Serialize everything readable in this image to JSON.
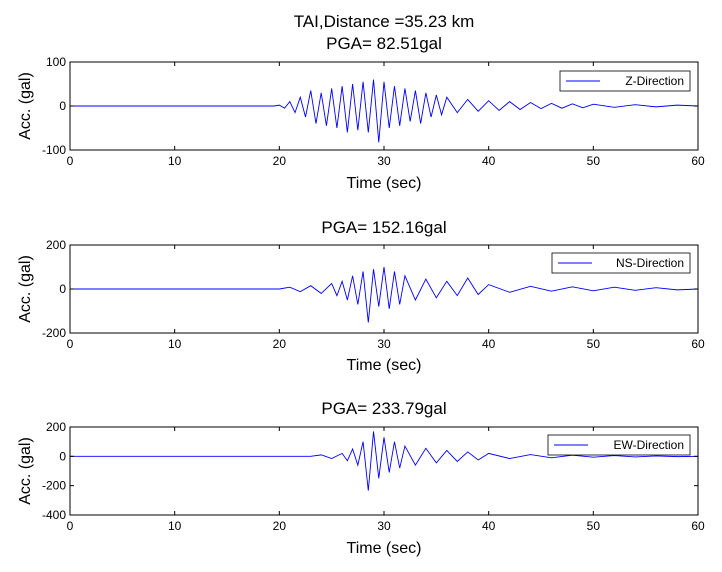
{
  "chart_data": [
    {
      "type": "line",
      "title_lines": [
        "TAI,Distance =35.23 km",
        "PGA= 82.51gal"
      ],
      "xlabel": "Time (sec)",
      "ylabel": "Acc. (gal)",
      "xlim": [
        0,
        60
      ],
      "ylim": [
        -100,
        100
      ],
      "xticks": [
        0,
        10,
        20,
        30,
        40,
        50,
        60
      ],
      "yticks": [
        -100,
        0,
        100
      ],
      "grid": false,
      "legend_position": "top-right",
      "series": [
        {
          "name": "Z-Direction",
          "color": "#0000ff",
          "pga": 82.51,
          "x": [
            0,
            19.5,
            20.0,
            20.5,
            21.0,
            21.5,
            22.0,
            22.5,
            23.0,
            23.5,
            24.0,
            24.5,
            25.0,
            25.5,
            26.0,
            26.5,
            27.0,
            27.5,
            28.0,
            28.5,
            29.0,
            29.5,
            30.0,
            30.5,
            31.0,
            31.5,
            32.0,
            32.5,
            33.0,
            33.5,
            34.0,
            34.5,
            35.0,
            35.5,
            36.0,
            37.0,
            38.0,
            39.0,
            40.0,
            41.0,
            42.0,
            43.0,
            44.0,
            45.0,
            46.0,
            47.0,
            48.0,
            49.0,
            50.0,
            52.0,
            54.0,
            56.0,
            58.0,
            60.0
          ],
          "y": [
            0,
            0,
            2,
            -5,
            10,
            -15,
            20,
            -25,
            35,
            -40,
            30,
            -45,
            40,
            -50,
            45,
            -60,
            50,
            -55,
            55,
            -60,
            60,
            -82.51,
            55,
            -50,
            45,
            -45,
            40,
            -35,
            35,
            -40,
            30,
            -25,
            25,
            -20,
            20,
            -15,
            15,
            -12,
            12,
            -10,
            10,
            -8,
            8,
            -6,
            6,
            -5,
            5,
            -4,
            4,
            -3,
            3,
            -2,
            2,
            0
          ]
        }
      ]
    },
    {
      "type": "line",
      "title_lines": [
        "PGA= 152.16gal"
      ],
      "xlabel": "Time (sec)",
      "ylabel": "Acc. (gal)",
      "xlim": [
        0,
        60
      ],
      "ylim": [
        -200,
        200
      ],
      "xticks": [
        0,
        10,
        20,
        30,
        40,
        50,
        60
      ],
      "yticks": [
        -200,
        0,
        200
      ],
      "grid": false,
      "legend_position": "top-right",
      "series": [
        {
          "name": "NS-Direction",
          "color": "#0000ff",
          "pga": 152.16,
          "x": [
            0,
            20.0,
            21.0,
            22.0,
            23.0,
            24.0,
            25.0,
            25.5,
            26.0,
            26.5,
            27.0,
            27.5,
            28.0,
            28.5,
            29.0,
            29.5,
            30.0,
            30.5,
            31.0,
            31.5,
            32.0,
            33.0,
            34.0,
            35.0,
            36.0,
            37.0,
            38.0,
            39.0,
            40.0,
            42.0,
            44.0,
            46.0,
            48.0,
            50.0,
            52.0,
            54.0,
            56.0,
            58.0,
            60.0
          ],
          "y": [
            0,
            0,
            8,
            -12,
            15,
            -20,
            25,
            -30,
            35,
            -50,
            60,
            -70,
            80,
            -152.16,
            90,
            -80,
            100,
            -90,
            80,
            -70,
            60,
            -50,
            45,
            -40,
            35,
            -30,
            50,
            -25,
            20,
            -15,
            12,
            -10,
            10,
            -8,
            8,
            -6,
            6,
            -4,
            0
          ]
        }
      ]
    },
    {
      "type": "line",
      "title_lines": [
        "PGA= 233.79gal"
      ],
      "xlabel": "Time (sec)",
      "ylabel": "Acc. (gal)",
      "xlim": [
        0,
        60
      ],
      "ylim": [
        -400,
        200
      ],
      "xticks": [
        0,
        10,
        20,
        30,
        40,
        50,
        60
      ],
      "yticks": [
        -400,
        -200,
        0,
        200
      ],
      "grid": false,
      "legend_position": "top-right",
      "series": [
        {
          "name": "EW-Direction",
          "color": "#0000ff",
          "pga": 233.79,
          "x": [
            0,
            23.0,
            24.0,
            25.0,
            26.0,
            26.5,
            27.0,
            27.5,
            28.0,
            28.5,
            29.0,
            29.5,
            30.0,
            30.5,
            31.0,
            31.5,
            32.0,
            33.0,
            34.0,
            35.0,
            36.0,
            37.0,
            38.0,
            39.0,
            40.0,
            42.0,
            44.0,
            46.0,
            48.0,
            50.0,
            52.0,
            54.0,
            56.0,
            58.0,
            60.0
          ],
          "y": [
            0,
            0,
            10,
            -15,
            20,
            -30,
            50,
            -60,
            100,
            -233.79,
            170,
            -150,
            130,
            -110,
            100,
            -80,
            70,
            -60,
            55,
            -45,
            40,
            -35,
            30,
            -25,
            20,
            -15,
            12,
            -10,
            8,
            -6,
            5,
            -4,
            3,
            -2,
            0
          ]
        }
      ]
    }
  ]
}
